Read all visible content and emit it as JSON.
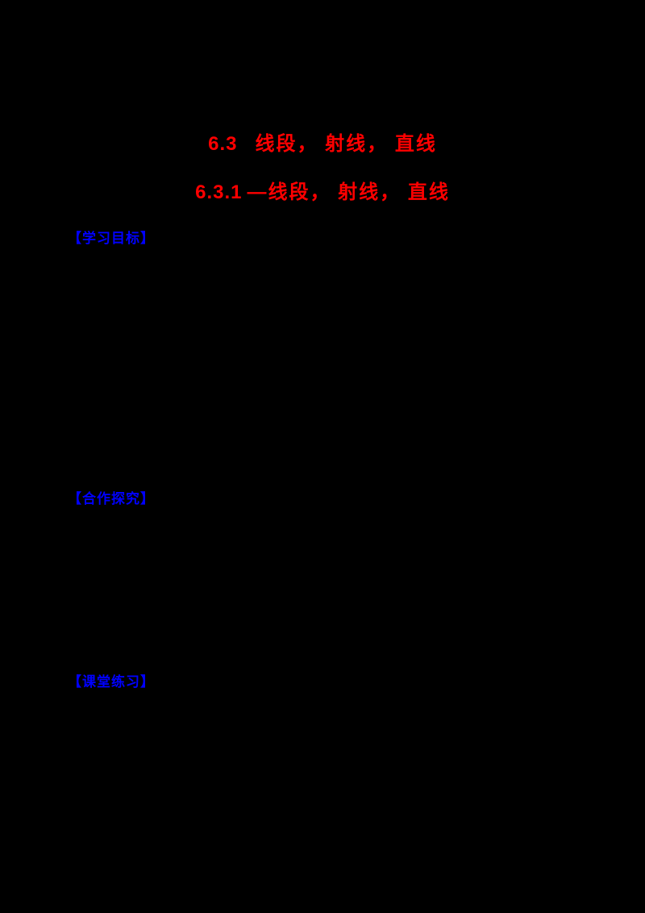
{
  "page": {
    "background_color": "#000000",
    "accent_red": "#ff0000",
    "accent_blue": "#0000ff"
  },
  "headings": {
    "chapter": {
      "number": "6.3",
      "title": "线段，  射线，  直线"
    },
    "subsection": {
      "number": "6.3.1",
      "title": "—线段，  射线，  直线"
    }
  },
  "sections": [
    {
      "label": "【学习目标】"
    },
    {
      "label": "【合作探究】"
    },
    {
      "label": "【课堂练习】"
    }
  ]
}
